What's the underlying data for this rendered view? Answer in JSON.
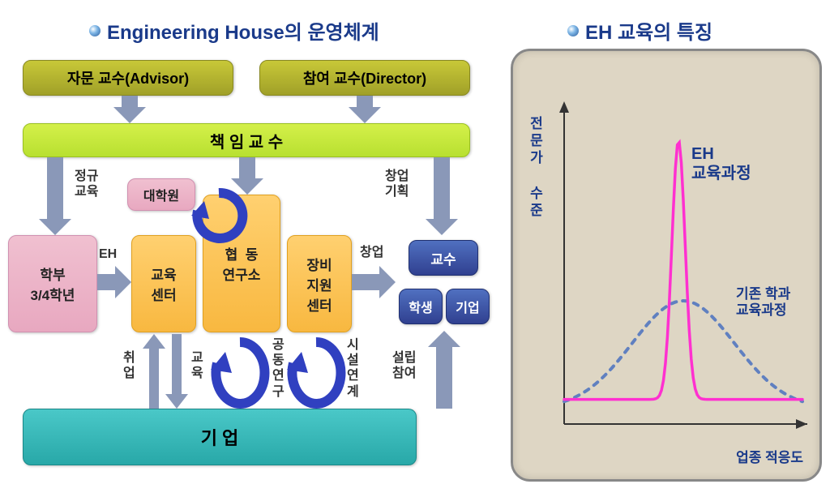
{
  "titles": {
    "left": "Engineering House의 운영체계",
    "right": "EH 교육의 특징"
  },
  "boxes": {
    "advisor": "자문 교수(Advisor)",
    "director": "참여 교수(Director)",
    "chief": "책 임 교 수",
    "undergrad": "학부\n3/4학년",
    "gradschool": "대학원",
    "eduCenter": "교육\n센터",
    "coopLab": "협  동\n연구소",
    "equipCenter": "장비\n지원\n센터",
    "professor": "교수",
    "student": "학생",
    "company": "기업",
    "corp": "기  업"
  },
  "labels": {
    "regEdu": "정규\n교육",
    "eh": "EH",
    "employ": "취\n업",
    "edu": "교\n육",
    "jointRes": "공\n동\n연\n구",
    "facility": "시\n설\n연\n계",
    "startup": "창업",
    "startupPlan": "창업\n기획",
    "establish": "설립\n참여"
  },
  "chart": {
    "yAxisLabel": "전문가 수준",
    "xAxisLabel": "업종 적응도",
    "ehCurveLabel": "EH\n교육과정",
    "existingLabel": "기존 학과\n교육과정",
    "colors": {
      "ehCurve": "#ff30d0",
      "existing": "#6080c0",
      "axis": "#333333",
      "axisLabel": "#1a3a8a",
      "panelBg": "#ded6c4"
    },
    "ehCurve": {
      "peakX": 0.48,
      "peakY": 0.92,
      "width": 0.07,
      "baseY": 0.08
    },
    "existingCurve": {
      "peakX": 0.5,
      "peakY": 0.4,
      "spread": 0.9,
      "baseY": 0.05
    }
  },
  "style": {
    "arrowFill": "#8a98b8",
    "cycleArrow": "#3040c0"
  }
}
